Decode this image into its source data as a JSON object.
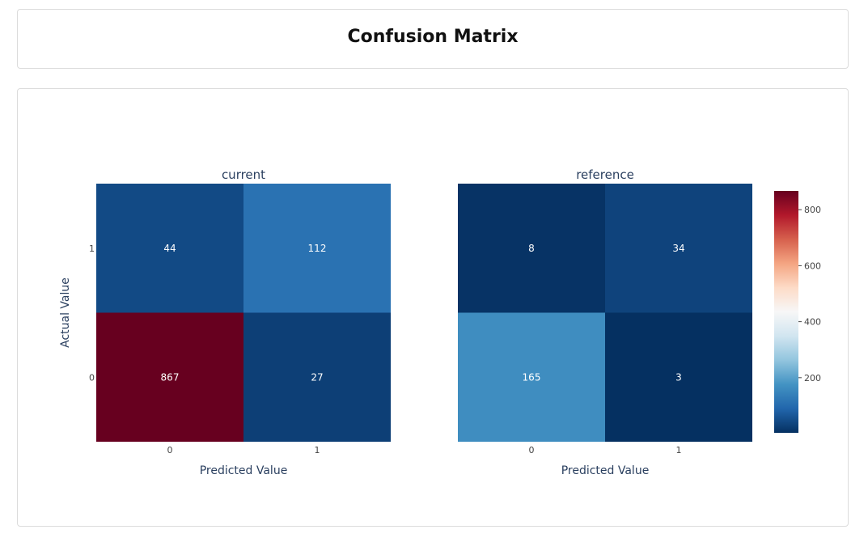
{
  "page": {
    "title": "Confusion Matrix"
  },
  "chart_data": {
    "type": "heatmap",
    "title": "Confusion Matrix",
    "colorscale": "RdBu_r",
    "zmin": 3,
    "zmax": 867,
    "colorbar_ticks": [
      200,
      400,
      600,
      800
    ],
    "colorbar_tick_labels": [
      "200",
      "400",
      "600",
      "800"
    ],
    "subplots": [
      {
        "name": "current",
        "x_categories": [
          "0",
          "1"
        ],
        "y_categories": [
          "0",
          "1"
        ],
        "xlabel": "Predicted Value",
        "ylabel": "Actual Value",
        "matrix": [
          [
            867,
            27
          ],
          [
            44,
            112
          ]
        ]
      },
      {
        "name": "reference",
        "x_categories": [
          "0",
          "1"
        ],
        "y_categories": [
          "0",
          "1"
        ],
        "xlabel": "Predicted Value",
        "ylabel": "",
        "matrix": [
          [
            165,
            3
          ],
          [
            8,
            34
          ]
        ]
      }
    ]
  }
}
